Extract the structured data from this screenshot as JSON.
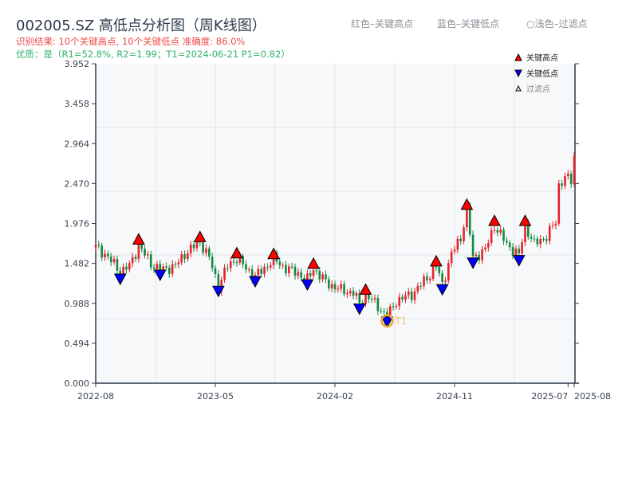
{
  "title": "002005.SZ 高低点分析图（周K线图）",
  "subtitle_result": "识别结果: 10个关键高点, 10个关键低点   准确度: 86.0%",
  "subtitle_quality": "优质：是（R1=52.8%, R2=1.99；T1=2024-06-21 P1=0.82）",
  "top_legend": {
    "red": "红色–关键高点",
    "blue": "蓝色–关键低点",
    "light": "○浅色–过滤点"
  },
  "chart_data": {
    "type": "candlestick",
    "title": "002005.SZ 高低点分析图（周K线图）",
    "ylim": [
      0,
      3.952
    ],
    "yticks": [
      "0.000",
      "0.494",
      "0.988",
      "1.482",
      "1.976",
      "2.470",
      "2.964",
      "3.458",
      "3.952"
    ],
    "xticks": [
      {
        "label": "2022-08",
        "week": 0
      },
      {
        "label": "2023-05",
        "week": 39
      },
      {
        "label": "2024-02",
        "week": 78
      },
      {
        "label": "2024-11",
        "week": 117
      },
      {
        "label": "2025-07",
        "week": 154
      },
      {
        "label": "2025-08",
        "week": 156
      }
    ],
    "weeks": 156,
    "price_path": [
      [
        0,
        1.68
      ],
      [
        3,
        1.6
      ],
      [
        8,
        1.38
      ],
      [
        11,
        1.45
      ],
      [
        14,
        1.7
      ],
      [
        18,
        1.48
      ],
      [
        21,
        1.4
      ],
      [
        26,
        1.45
      ],
      [
        29,
        1.6
      ],
      [
        34,
        1.75
      ],
      [
        37,
        1.55
      ],
      [
        40,
        1.2
      ],
      [
        43,
        1.45
      ],
      [
        46,
        1.55
      ],
      [
        49,
        1.42
      ],
      [
        52,
        1.32
      ],
      [
        55,
        1.42
      ],
      [
        58,
        1.54
      ],
      [
        62,
        1.42
      ],
      [
        66,
        1.36
      ],
      [
        69,
        1.28
      ],
      [
        71,
        1.42
      ],
      [
        75,
        1.25
      ],
      [
        80,
        1.15
      ],
      [
        84,
        1.12
      ],
      [
        86,
        0.98
      ],
      [
        88,
        1.1
      ],
      [
        92,
        0.95
      ],
      [
        95,
        0.82
      ],
      [
        98,
        1.02
      ],
      [
        103,
        1.1
      ],
      [
        108,
        1.3
      ],
      [
        111,
        1.45
      ],
      [
        113,
        1.22
      ],
      [
        116,
        1.6
      ],
      [
        119,
        1.8
      ],
      [
        121,
        2.15
      ],
      [
        123,
        1.55
      ],
      [
        127,
        1.65
      ],
      [
        130,
        1.95
      ],
      [
        134,
        1.72
      ],
      [
        138,
        1.58
      ],
      [
        140,
        1.95
      ],
      [
        143,
        1.72
      ],
      [
        147,
        1.82
      ],
      [
        150,
        2.0
      ],
      [
        151,
        2.45
      ],
      [
        153,
        2.55
      ],
      [
        155,
        2.5
      ],
      [
        156,
        2.8
      ]
    ],
    "key_highs": [
      {
        "week": 14,
        "price": 1.72
      },
      {
        "week": 34,
        "price": 1.75
      },
      {
        "week": 46,
        "price": 1.55
      },
      {
        "week": 58,
        "price": 1.54
      },
      {
        "week": 71,
        "price": 1.42
      },
      {
        "week": 88,
        "price": 1.1
      },
      {
        "week": 111,
        "price": 1.45
      },
      {
        "week": 121,
        "price": 2.15
      },
      {
        "week": 130,
        "price": 1.95
      },
      {
        "week": 140,
        "price": 1.95
      }
    ],
    "key_lows": [
      {
        "week": 8,
        "price": 1.35
      },
      {
        "week": 21,
        "price": 1.4
      },
      {
        "week": 40,
        "price": 1.2
      },
      {
        "week": 52,
        "price": 1.32
      },
      {
        "week": 69,
        "price": 1.28
      },
      {
        "week": 86,
        "price": 0.98
      },
      {
        "week": 95,
        "price": 0.82
      },
      {
        "week": 113,
        "price": 1.22
      },
      {
        "week": 123,
        "price": 1.55
      },
      {
        "week": 138,
        "price": 1.58
      }
    ],
    "t1": {
      "label": "T1",
      "week": 95,
      "price": 0.82
    },
    "legend": {
      "position": "top-right",
      "items": [
        "关键高点",
        "关键低点",
        "过滤点"
      ]
    },
    "colors": {
      "up": "#e8202a",
      "down": "#12893e",
      "high": "#ff0000",
      "low": "#0000ff",
      "t1": "#f5a623"
    }
  }
}
